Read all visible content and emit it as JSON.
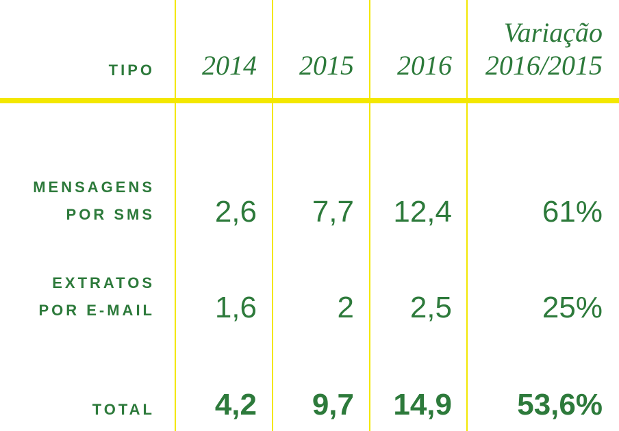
{
  "header": {
    "type_label": "TIPO",
    "years": [
      "2014",
      "2015",
      "2016"
    ],
    "variation": [
      "Variação",
      "2016/2015"
    ]
  },
  "rows": [
    {
      "label": [
        "MENSAGENS",
        "POR SMS"
      ],
      "values": [
        "2,6",
        "7,7",
        "12,4"
      ],
      "variation": "61%"
    },
    {
      "label": [
        "EXTRATOS",
        "POR E-MAIL"
      ],
      "values": [
        "1,6",
        "2",
        "2,5"
      ],
      "variation": "25%"
    }
  ],
  "total": {
    "label": "TOTAL",
    "values": [
      "4,2",
      "9,7",
      "14,9"
    ],
    "variation": "53,6%"
  }
}
